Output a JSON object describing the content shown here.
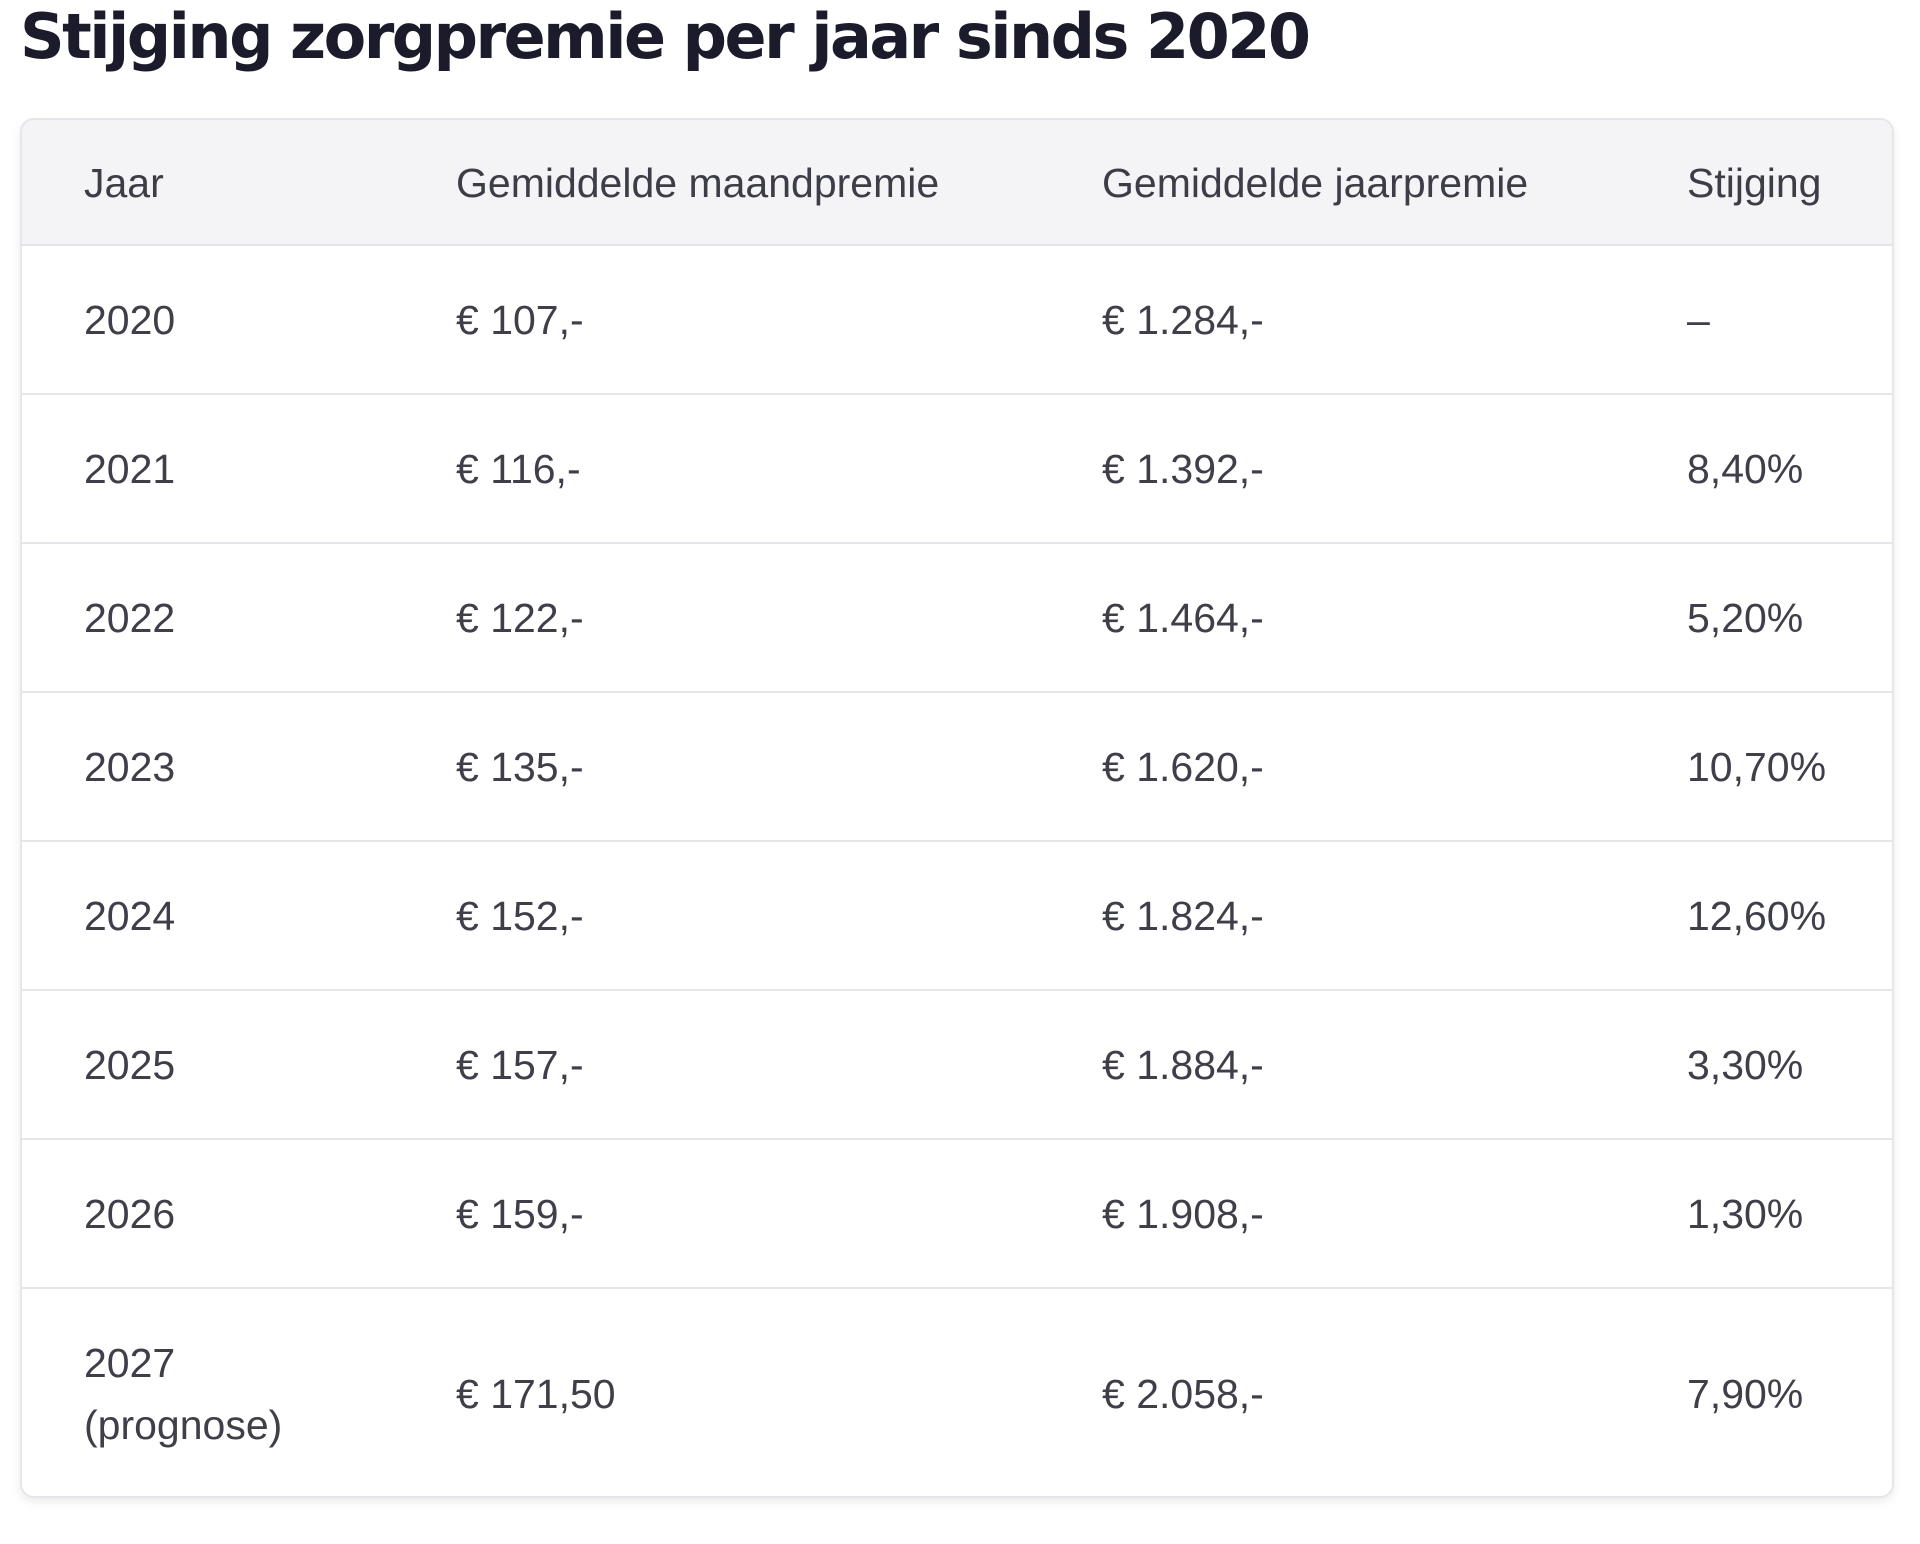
{
  "page": {
    "title": "Stijging zorgpremie per jaar sinds 2020"
  },
  "table": {
    "headers": {
      "year": "Jaar",
      "monthly": "Gemiddelde maandpremie",
      "annual": "Gemiddelde jaarpremie",
      "increase": "Stijging"
    },
    "rows": [
      {
        "year": "2020",
        "monthly": "€ 107,-",
        "annual": "€ 1.284,-",
        "increase": "–"
      },
      {
        "year": "2021",
        "monthly": "€ 116,-",
        "annual": "€ 1.392,-",
        "increase": "8,40%"
      },
      {
        "year": "2022",
        "monthly": "€ 122,-",
        "annual": "€ 1.464,-",
        "increase": "5,20%"
      },
      {
        "year": "2023",
        "monthly": "€ 135,-",
        "annual": "€ 1.620,-",
        "increase": "10,70%"
      },
      {
        "year": "2024",
        "monthly": "€ 152,-",
        "annual": "€ 1.824,-",
        "increase": "12,60%"
      },
      {
        "year": "2025",
        "monthly": "€ 157,-",
        "annual": "€ 1.884,-",
        "increase": "3,30%"
      },
      {
        "year": "2026",
        "monthly": "€ 159,-",
        "annual": "€ 1.908,-",
        "increase": "1,30%"
      },
      {
        "year": "2027",
        "year_note": "(prognose)",
        "monthly": "€ 171,50",
        "annual": "€ 2.058,-",
        "increase": "7,90%"
      }
    ]
  }
}
